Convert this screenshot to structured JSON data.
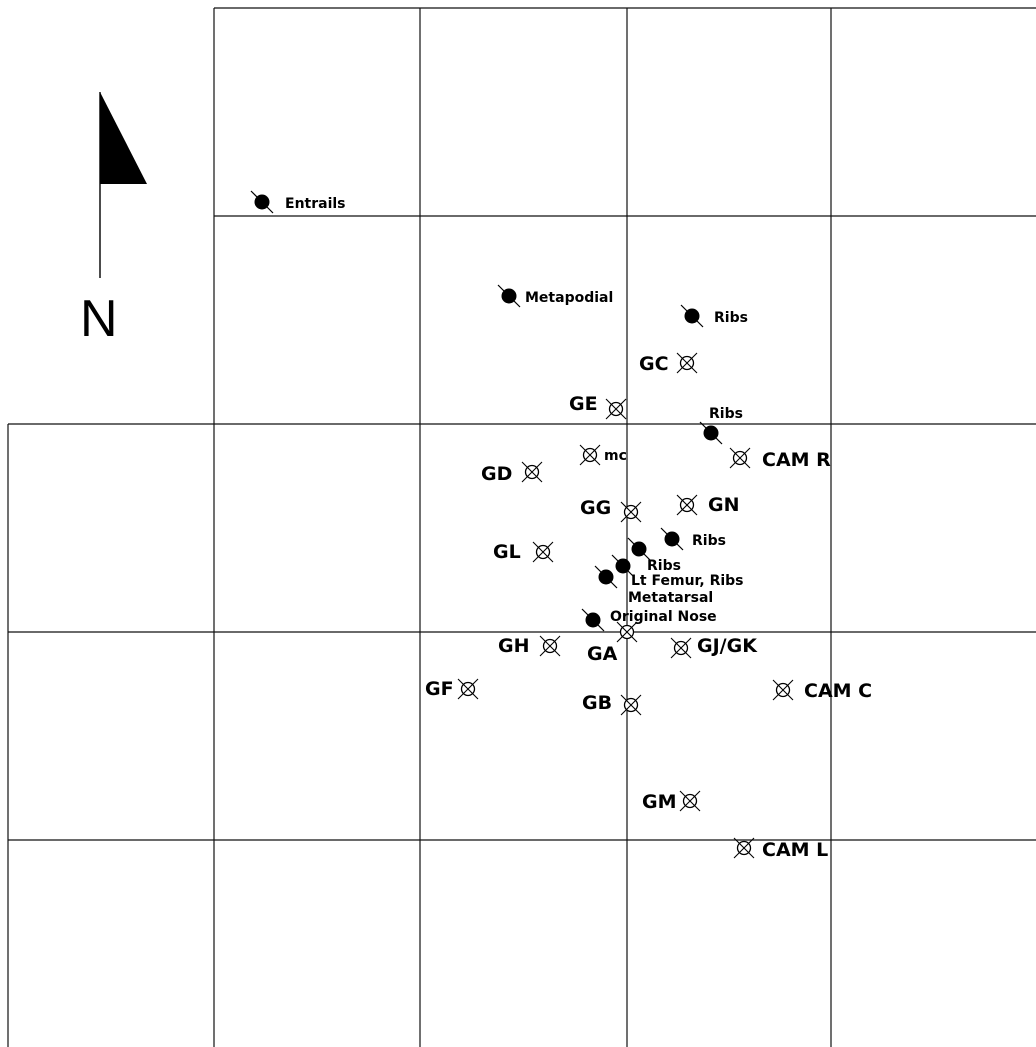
{
  "north_arrow": {
    "label": "N",
    "icon": "north-arrow-icon"
  },
  "legend_markers": {
    "bone": "filled-dot-cross-icon",
    "station": "circle-cross-icon"
  },
  "bones": [
    {
      "id": "entrails",
      "label": "Entrails"
    },
    {
      "id": "metapodial",
      "label": "Metapodial"
    },
    {
      "id": "ribs-1",
      "label": "Ribs"
    },
    {
      "id": "ribs-2",
      "label": "Ribs"
    },
    {
      "id": "ribs-3",
      "label": "Ribs"
    },
    {
      "id": "ribs-4",
      "label": "Ribs"
    },
    {
      "id": "lt-femur-ribs",
      "label": "Lt Femur, Ribs"
    },
    {
      "id": "metatarsal",
      "label": "Metatarsal"
    },
    {
      "id": "original-nose",
      "label": "Original Nose"
    }
  ],
  "stations": [
    {
      "id": "gc",
      "label": "GC"
    },
    {
      "id": "ge",
      "label": "GE"
    },
    {
      "id": "mc",
      "label": "mc"
    },
    {
      "id": "gd",
      "label": "GD"
    },
    {
      "id": "cam-r",
      "label": "CAM R"
    },
    {
      "id": "gg",
      "label": "GG"
    },
    {
      "id": "gn",
      "label": "GN"
    },
    {
      "id": "gl",
      "label": "GL"
    },
    {
      "id": "gh",
      "label": "GH"
    },
    {
      "id": "ga",
      "label": "GA"
    },
    {
      "id": "gj-gk",
      "label": "GJ/GK"
    },
    {
      "id": "gf",
      "label": "GF"
    },
    {
      "id": "gb",
      "label": "GB"
    },
    {
      "id": "cam-c",
      "label": "CAM C"
    },
    {
      "id": "gm",
      "label": "GM"
    },
    {
      "id": "cam-l",
      "label": "CAM L"
    }
  ]
}
